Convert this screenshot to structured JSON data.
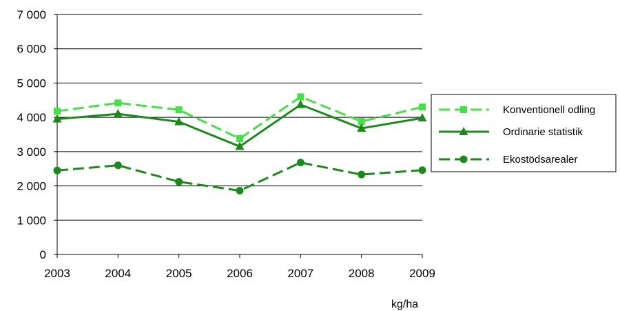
{
  "chart_data": {
    "type": "line",
    "title": "",
    "xlabel": "",
    "ylabel": "",
    "unit_note": "kg/ha",
    "categories": [
      "2003",
      "2004",
      "2005",
      "2006",
      "2007",
      "2008",
      "2009"
    ],
    "ylim": [
      0,
      7000
    ],
    "ytick_values": [
      0,
      1000,
      2000,
      3000,
      4000,
      5000,
      6000,
      7000
    ],
    "ytick_labels": [
      "0",
      "1 000",
      "2 000",
      "3 000",
      "4 000",
      "5 000",
      "6 000",
      "7 000"
    ],
    "grid": true,
    "legend_position": "right",
    "series": [
      {
        "name": "Konventionell odling",
        "color": "#47e047",
        "marker": "square",
        "dash": "dashed",
        "values": [
          4180,
          4420,
          4220,
          3380,
          4600,
          3880,
          4300
        ]
      },
      {
        "name": "Ordinarie statistik",
        "color": "#1a8a1a",
        "marker": "triangle",
        "dash": "solid",
        "values": [
          3950,
          4100,
          3870,
          3150,
          4370,
          3680,
          3980
        ]
      },
      {
        "name": "Ekostödsarealer",
        "color": "#1a8a1a",
        "marker": "circle",
        "dash": "dashed",
        "values": [
          2450,
          2600,
          2120,
          1860,
          2680,
          2330,
          2460
        ]
      }
    ]
  }
}
